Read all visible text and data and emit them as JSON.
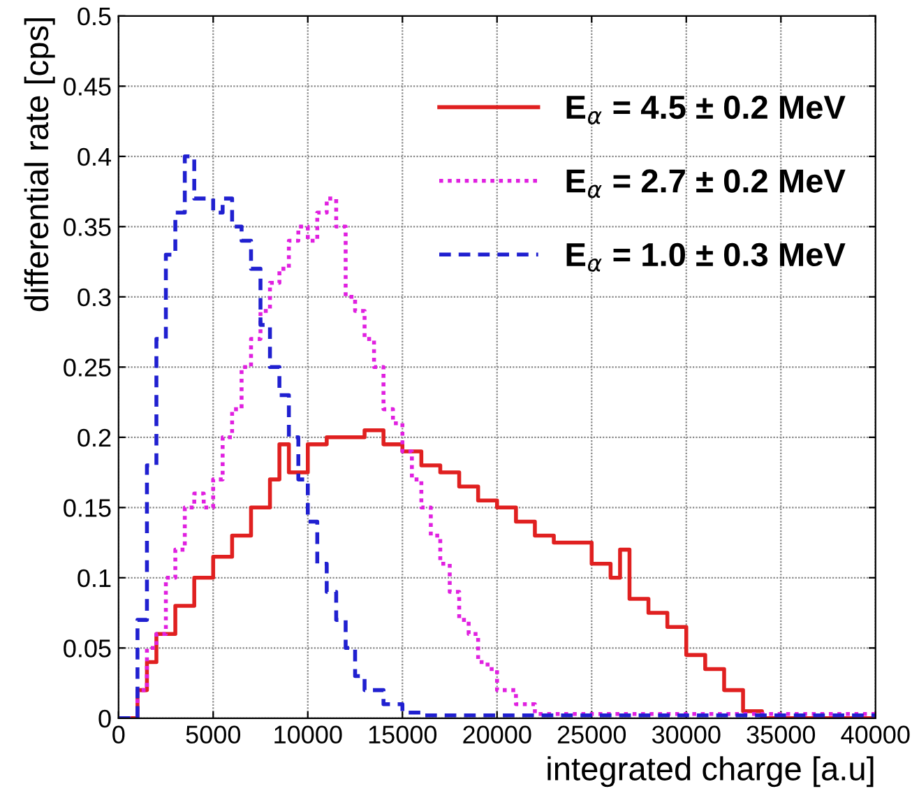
{
  "chart_data": {
    "type": "step",
    "xlabel": "integrated charge [a.u]",
    "ylabel": "differential rate [cps]",
    "xlim": [
      0,
      40000
    ],
    "ylim": [
      0,
      0.5
    ],
    "xticks": [
      0,
      5000,
      10000,
      15000,
      20000,
      25000,
      30000,
      35000,
      40000
    ],
    "yticks": [
      0,
      0.05,
      0.1,
      0.15,
      0.2,
      0.25,
      0.3,
      0.35,
      0.4,
      0.45,
      0.5
    ],
    "grid": true,
    "legend": "top right",
    "series": [
      {
        "name": "E$_{α}$ = 4.5 ± 0.2 MeV",
        "color": "#e02020",
        "line_style": "solid",
        "x": [
          0,
          1000,
          1500,
          2000,
          3000,
          4000,
          5000,
          6000,
          7000,
          8000,
          8500,
          9000,
          10000,
          11000,
          12000,
          13000,
          14000,
          15000,
          16000,
          17000,
          18000,
          19000,
          20000,
          21000,
          22000,
          23000,
          24000,
          25000,
          26000,
          26500,
          27000,
          28000,
          29000,
          30000,
          31000,
          32000,
          33000,
          34000,
          40000
        ],
        "values": [
          0,
          0.02,
          0.04,
          0.06,
          0.08,
          0.1,
          0.115,
          0.13,
          0.15,
          0.17,
          0.195,
          0.175,
          0.195,
          0.2,
          0.2,
          0.205,
          0.195,
          0.19,
          0.18,
          0.175,
          0.165,
          0.155,
          0.15,
          0.14,
          0.13,
          0.125,
          0.125,
          0.11,
          0.1,
          0.12,
          0.085,
          0.075,
          0.065,
          0.045,
          0.035,
          0.02,
          0.005,
          0,
          0
        ]
      },
      {
        "name": "E$_{α}$ = 2.7 ± 0.2 MeV",
        "color": "#e020e0",
        "line_style": "dotted",
        "x": [
          0,
          1000,
          1500,
          2000,
          2500,
          3000,
          3500,
          4000,
          4500,
          5000,
          5500,
          6000,
          6500,
          7000,
          7500,
          8000,
          8500,
          9000,
          9500,
          10000,
          10500,
          11000,
          11500,
          12000,
          12500,
          13000,
          13500,
          14000,
          14500,
          15000,
          15500,
          16000,
          16500,
          17000,
          17500,
          18000,
          18500,
          19000,
          19500,
          20000,
          21000,
          22000,
          40000
        ],
        "values": [
          0,
          0.02,
          0.05,
          0.06,
          0.1,
          0.12,
          0.15,
          0.16,
          0.15,
          0.17,
          0.2,
          0.22,
          0.25,
          0.27,
          0.29,
          0.31,
          0.32,
          0.34,
          0.35,
          0.34,
          0.36,
          0.37,
          0.35,
          0.3,
          0.29,
          0.27,
          0.25,
          0.22,
          0.21,
          0.19,
          0.17,
          0.15,
          0.13,
          0.11,
          0.09,
          0.07,
          0.06,
          0.04,
          0.035,
          0.02,
          0.01,
          0.003,
          0.003
        ]
      },
      {
        "name": "E$_{α}$ = 1.0 ± 0.3 MeV",
        "color": "#2020d0",
        "line_style": "dashed",
        "x": [
          0,
          1000,
          1500,
          2000,
          2500,
          3000,
          3500,
          4000,
          4500,
          5000,
          5500,
          6000,
          6500,
          7000,
          7500,
          8000,
          8500,
          9000,
          9500,
          10000,
          10500,
          11000,
          11500,
          12000,
          12500,
          13000,
          14000,
          15000,
          16000,
          40000
        ],
        "values": [
          0,
          0.07,
          0.18,
          0.27,
          0.33,
          0.36,
          0.4,
          0.37,
          0.37,
          0.36,
          0.37,
          0.35,
          0.34,
          0.32,
          0.28,
          0.25,
          0.23,
          0.2,
          0.17,
          0.14,
          0.11,
          0.09,
          0.07,
          0.05,
          0.03,
          0.02,
          0.01,
          0.004,
          0.002,
          0.002
        ]
      }
    ]
  }
}
